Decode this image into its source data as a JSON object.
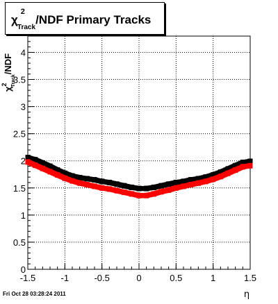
{
  "page": {
    "footer_timestamp": "Fri Oct 28 03:28:24 2011"
  },
  "chart_data": {
    "type": "scatter",
    "title": "χ²Track/NDF  Primary Tracks",
    "title_parts": {
      "chi": "χ",
      "sup": "2",
      "sub": "Track",
      "rest": "/NDF  Primary Tracks"
    },
    "xlabel": "η",
    "ylabel": "χ²Track/NDF",
    "ylabel_parts": {
      "chi": "χ",
      "sup": "2",
      "sub": "Track",
      "rest": "/NDF"
    },
    "xlim": [
      -1.5,
      1.5
    ],
    "ylim": [
      0,
      4.3
    ],
    "x_ticks": [
      {
        "v": -1.5,
        "label": "-1.5"
      },
      {
        "v": -1,
        "label": "-1"
      },
      {
        "v": -0.5,
        "label": "-0.5"
      },
      {
        "v": 0,
        "label": "0"
      },
      {
        "v": 0.5,
        "label": "0.5"
      },
      {
        "v": 1,
        "label": "1"
      },
      {
        "v": 1.5,
        "label": "1.5"
      }
    ],
    "y_ticks": [
      {
        "v": 0,
        "label": "0"
      },
      {
        "v": 0.5,
        "label": "0.5"
      },
      {
        "v": 1,
        "label": "1"
      },
      {
        "v": 1.5,
        "label": "1.5"
      },
      {
        "v": 2,
        "label": "2"
      },
      {
        "v": 2.5,
        "label": "2.5"
      },
      {
        "v": 3,
        "label": "3"
      },
      {
        "v": 3.5,
        "label": "3.5"
      },
      {
        "v": 4,
        "label": "4"
      }
    ],
    "grid": true,
    "series": [
      {
        "color": "#000000",
        "x": [
          -1.5,
          -1.4,
          -1.3,
          -1.2,
          -1.1,
          -1.0,
          -0.9,
          -0.8,
          -0.7,
          -0.6,
          -0.5,
          -0.4,
          -0.3,
          -0.2,
          -0.1,
          0.0,
          0.1,
          0.2,
          0.3,
          0.4,
          0.5,
          0.6,
          0.7,
          0.8,
          0.9,
          1.0,
          1.1,
          1.2,
          1.3,
          1.4,
          1.5
        ],
        "y": [
          2.06,
          2.02,
          1.96,
          1.9,
          1.83,
          1.77,
          1.72,
          1.69,
          1.67,
          1.65,
          1.62,
          1.6,
          1.57,
          1.54,
          1.51,
          1.49,
          1.49,
          1.51,
          1.54,
          1.57,
          1.6,
          1.62,
          1.65,
          1.67,
          1.7,
          1.74,
          1.79,
          1.85,
          1.91,
          1.97,
          1.99
        ]
      },
      {
        "color": "#ff0000",
        "x": [
          -1.5,
          -1.4,
          -1.3,
          -1.2,
          -1.1,
          -1.0,
          -0.9,
          -0.8,
          -0.7,
          -0.6,
          -0.5,
          -0.4,
          -0.3,
          -0.2,
          -0.1,
          0.0,
          0.1,
          0.2,
          0.3,
          0.4,
          0.5,
          0.6,
          0.7,
          0.8,
          0.9,
          1.0,
          1.1,
          1.2,
          1.3,
          1.4,
          1.5
        ],
        "y": [
          1.98,
          1.92,
          1.86,
          1.8,
          1.74,
          1.68,
          1.63,
          1.59,
          1.56,
          1.53,
          1.5,
          1.48,
          1.45,
          1.42,
          1.39,
          1.36,
          1.36,
          1.39,
          1.43,
          1.46,
          1.5,
          1.53,
          1.56,
          1.59,
          1.62,
          1.66,
          1.71,
          1.77,
          1.83,
          1.89,
          1.91
        ]
      }
    ]
  }
}
